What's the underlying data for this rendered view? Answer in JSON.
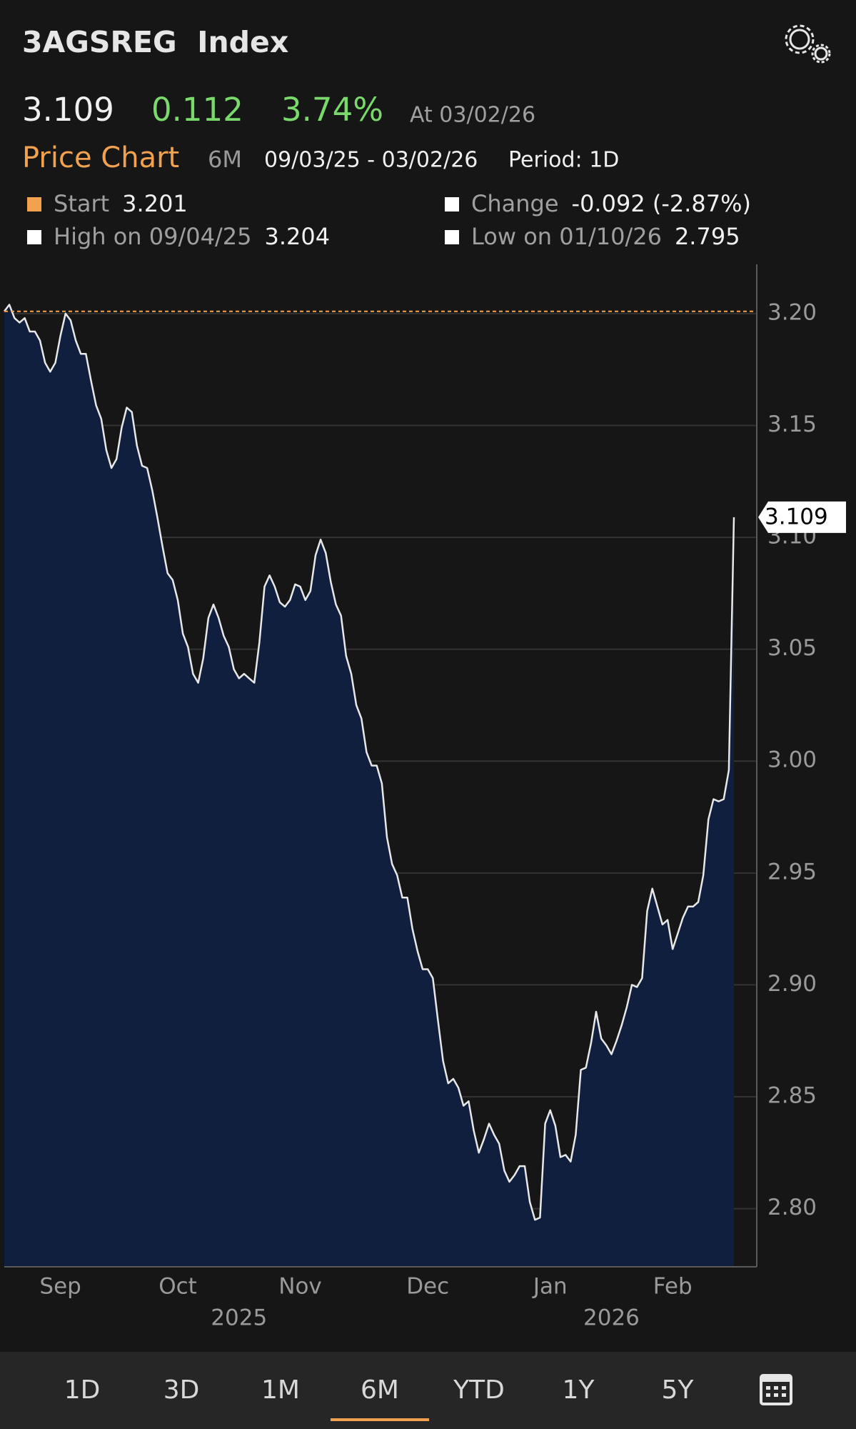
{
  "header": {
    "ticker": "3AGSREG  Index",
    "last": 3.109,
    "change": "0.112",
    "change_pct": "3.74%",
    "as_of": "At 03/02/26"
  },
  "chart_header": {
    "title": "Price Chart",
    "range": "6M",
    "dates": "09/03/25 - 03/02/26",
    "period": "Period: 1D"
  },
  "stats": [
    {
      "label": "Start",
      "value": 3.201,
      "color": "#f2a24e"
    },
    {
      "label": "Change",
      "value": "-0.092 (-2.87%)",
      "color": "#ffffff"
    },
    {
      "label": "High on 09/04/25",
      "value": 3.204,
      "color": "#ffffff"
    },
    {
      "label": "Low on 01/10/26",
      "value": 2.795,
      "color": "#ffffff"
    }
  ],
  "chart_data": {
    "type": "area",
    "line_color": "#e8e8e8",
    "fill_color": "#0f1f3d",
    "grid": true,
    "values": [
      3.201,
      3.204,
      3.198,
      3.196,
      3.198,
      3.192,
      3.192,
      3.188,
      3.178,
      3.174,
      3.178,
      3.19,
      3.2,
      3.197,
      3.188,
      3.182,
      3.182,
      3.17,
      3.159,
      3.153,
      3.139,
      3.131,
      3.135,
      3.149,
      3.158,
      3.156,
      3.141,
      3.132,
      3.131,
      3.121,
      3.109,
      3.096,
      3.084,
      3.081,
      3.072,
      3.057,
      3.051,
      3.039,
      3.035,
      3.046,
      3.064,
      3.07,
      3.064,
      3.056,
      3.051,
      3.041,
      3.037,
      3.039,
      3.037,
      3.035,
      3.053,
      3.078,
      3.083,
      3.078,
      3.071,
      3.069,
      3.072,
      3.079,
      3.078,
      3.072,
      3.076,
      3.092,
      3.099,
      3.093,
      3.08,
      3.07,
      3.065,
      3.047,
      3.039,
      3.025,
      3.019,
      3.004,
      2.998,
      2.998,
      2.99,
      2.966,
      2.954,
      2.949,
      2.939,
      2.939,
      2.925,
      2.915,
      2.907,
      2.907,
      2.903,
      2.884,
      2.866,
      2.856,
      2.858,
      2.854,
      2.846,
      2.848,
      2.835,
      2.825,
      2.831,
      2.838,
      2.833,
      2.829,
      2.817,
      2.812,
      2.815,
      2.819,
      2.819,
      2.803,
      2.795,
      2.796,
      2.838,
      2.844,
      2.837,
      2.823,
      2.824,
      2.821,
      2.833,
      2.862,
      2.863,
      2.874,
      2.888,
      2.876,
      2.873,
      2.869,
      2.875,
      2.882,
      2.89,
      2.9,
      2.899,
      2.903,
      2.933,
      2.943,
      2.935,
      2.927,
      2.929,
      2.916,
      2.923,
      2.93,
      2.935,
      2.935,
      2.937,
      2.949,
      2.974,
      2.983,
      2.982,
      2.983,
      2.996,
      3.109
    ],
    "categories": [
      null,
      null,
      null,
      null,
      null,
      null,
      null,
      null,
      null,
      null,
      null,
      "Sep",
      null,
      null,
      null,
      null,
      null,
      null,
      null,
      null,
      null,
      null,
      null,
      null,
      null,
      null,
      null,
      null,
      null,
      null,
      null,
      null,
      null,
      null,
      "Oct",
      null,
      null,
      null,
      null,
      null,
      null,
      null,
      null,
      null,
      null,
      null,
      null,
      null,
      null,
      null,
      null,
      null,
      null,
      null,
      null,
      null,
      null,
      null,
      "Nov",
      null,
      null,
      null,
      null,
      null,
      null,
      null,
      null,
      null,
      null,
      null,
      null,
      null,
      null,
      null,
      null,
      null,
      null,
      null,
      null,
      null,
      null,
      null,
      null,
      "Dec",
      null,
      null,
      null,
      null,
      null,
      null,
      null,
      null,
      null,
      null,
      null,
      null,
      null,
      null,
      null,
      null,
      null,
      null,
      null,
      null,
      null,
      null,
      null,
      "Jan",
      null,
      null,
      null,
      null,
      null,
      null,
      null,
      null,
      null,
      null,
      null,
      null,
      null,
      null,
      null,
      null,
      null,
      null,
      null,
      null,
      null,
      null,
      null,
      "Feb",
      null,
      null,
      null,
      null,
      null,
      null,
      null,
      null,
      null,
      null,
      null,
      null
    ],
    "year_labels": [
      "2025",
      "2026"
    ],
    "ylim": [
      2.774,
      3.222
    ],
    "yticks": [
      {
        "value": 2.8,
        "label": "2.80"
      },
      {
        "value": 2.85,
        "label": "2.85"
      },
      {
        "value": 2.9,
        "label": "2.90"
      },
      {
        "value": 2.95,
        "label": "2.95"
      },
      {
        "value": 3.0,
        "label": "3.00"
      },
      {
        "value": 3.05,
        "label": "3.05"
      },
      {
        "value": 3.1,
        "label": "3.10"
      },
      {
        "value": 3.15,
        "label": "3.15"
      },
      {
        "value": 3.2,
        "label": "3.20"
      }
    ]
  },
  "tabs": [
    "1D",
    "3D",
    "1M",
    "6M",
    "YTD",
    "1Y",
    "5Y"
  ],
  "selected_tab": 3
}
